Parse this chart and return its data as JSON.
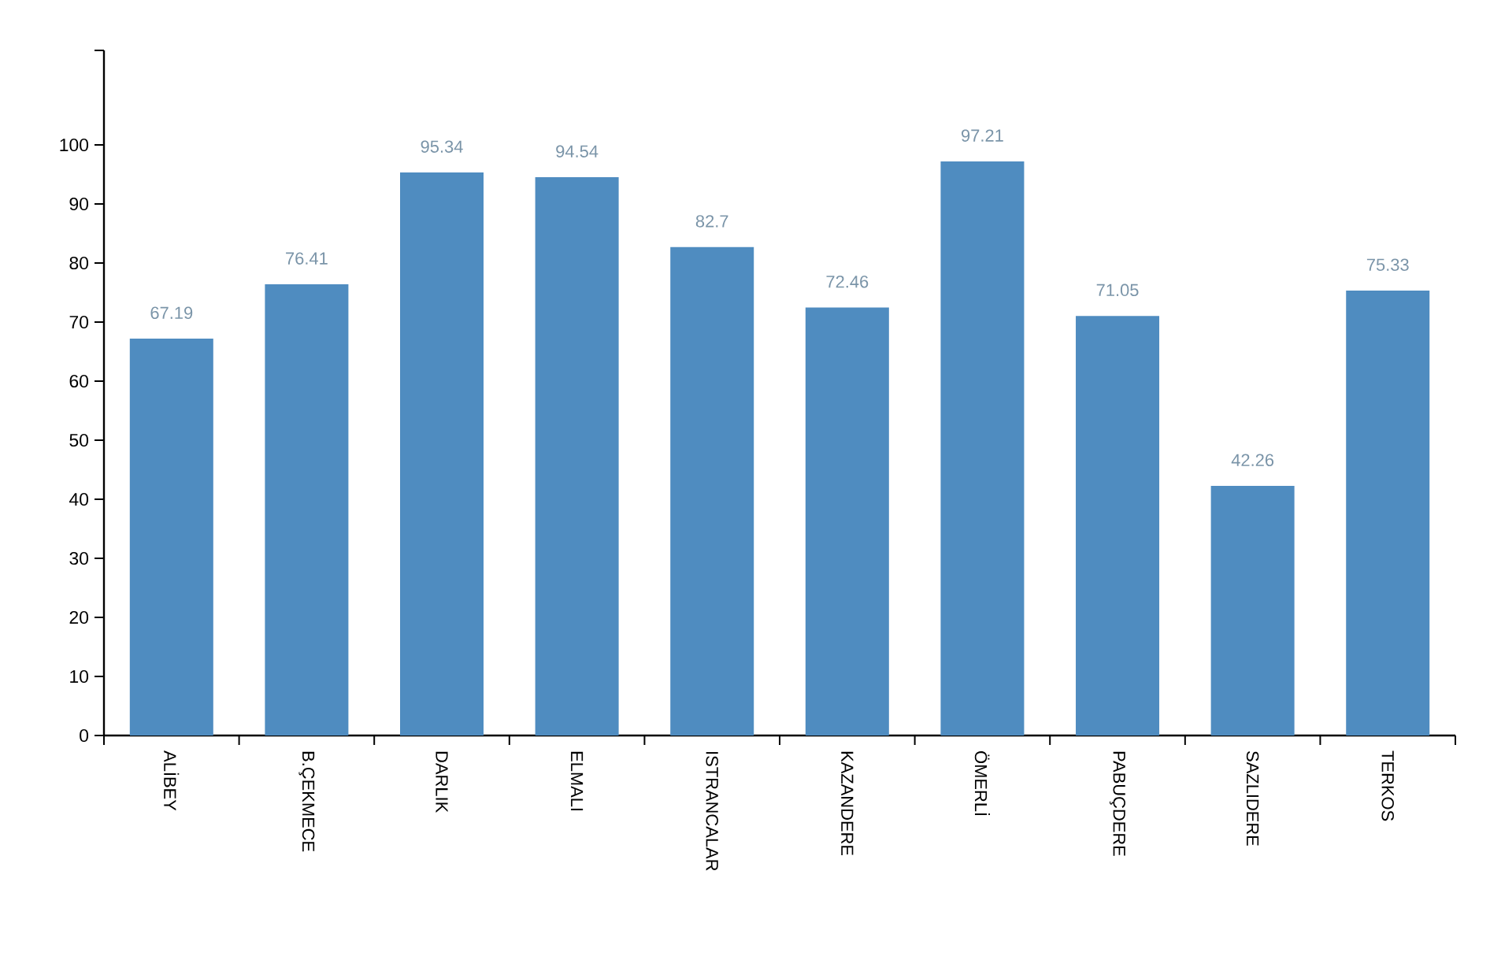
{
  "chart_data": {
    "type": "bar",
    "categories": [
      "ALİBEY",
      "B.ÇEKMECE",
      "DARLIK",
      "ELMALI",
      "ISTRANCALAR",
      "KAZANDERE",
      "ÖMERLİ",
      "PABUÇDERE",
      "SAZLIDERE",
      "TERKOS"
    ],
    "values": [
      67.19,
      76.41,
      95.34,
      94.54,
      82.7,
      72.46,
      97.21,
      71.05,
      42.26,
      75.33
    ],
    "color": "#4f8cc0",
    "data_labels": true,
    "ylim": [
      0,
      116
    ],
    "yticks": [
      0,
      10,
      20,
      30,
      40,
      50,
      60,
      70,
      80,
      90,
      100,
      {
        "value": 116,
        "label": null
      }
    ],
    "grid": false
  }
}
